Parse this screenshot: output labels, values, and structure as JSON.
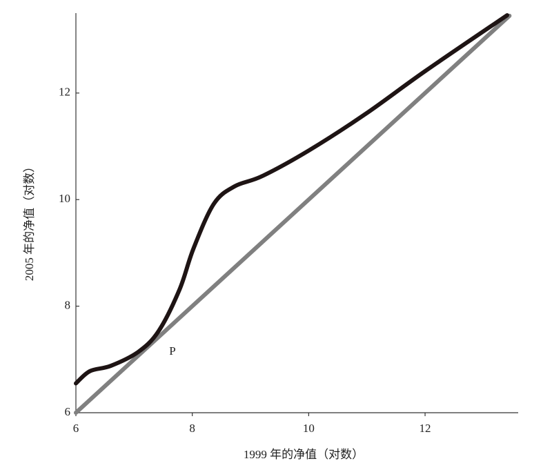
{
  "chart_data": {
    "type": "line",
    "xlabel": "1999 年的净值（对数）",
    "ylabel": "2005 年的净值（对数）",
    "annotation": "P",
    "xlim": [
      6,
      13.6
    ],
    "ylim": [
      6,
      13.5
    ],
    "xticks": [
      6,
      8,
      10,
      12
    ],
    "yticks": [
      6,
      8,
      10,
      12
    ],
    "series": [
      {
        "color": "#1e1414",
        "x": [
          6.0,
          6.24,
          6.6,
          7.07,
          7.42,
          7.78,
          8.02,
          8.37,
          8.73,
          9.2,
          10.0,
          10.98,
          12.0,
          13.41
        ],
        "values": [
          6.55,
          6.78,
          6.88,
          7.14,
          7.53,
          8.31,
          9.08,
          9.92,
          10.25,
          10.44,
          10.92,
          11.61,
          12.41,
          13.46
        ]
      },
      {
        "color": "#808080",
        "x": [
          6.0,
          13.45
        ],
        "values": [
          6.0,
          13.45
        ]
      }
    ]
  }
}
